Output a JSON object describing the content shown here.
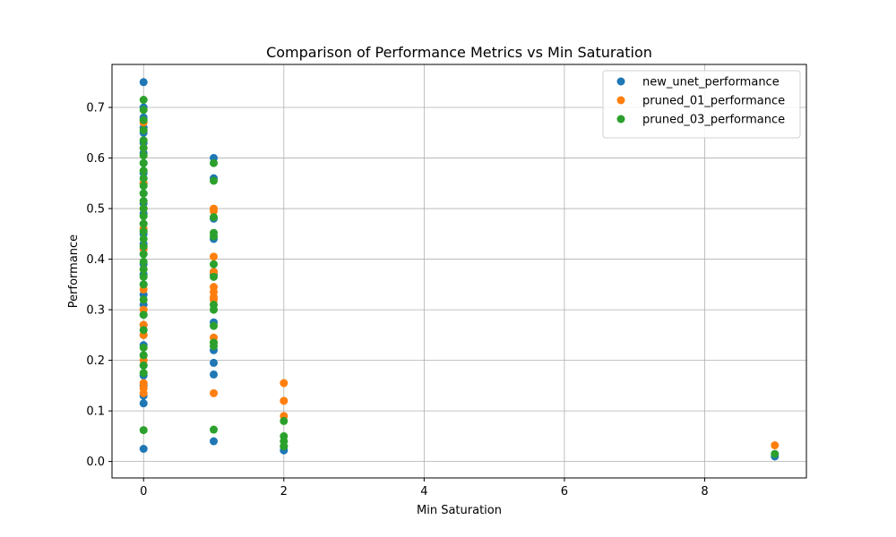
{
  "chart_data": {
    "type": "scatter",
    "title": "Comparison of Performance Metrics vs Min Saturation",
    "xlabel": "Min Saturation",
    "ylabel": "Performance",
    "xlim": [
      -0.45,
      9.45
    ],
    "ylim": [
      -0.0325,
      0.785
    ],
    "xticks": [
      0,
      2,
      4,
      6,
      8
    ],
    "yticks": [
      0.0,
      0.1,
      0.2,
      0.3,
      0.4,
      0.5,
      0.6,
      0.7
    ],
    "grid": true,
    "legend_position": "top-right",
    "series": [
      {
        "name": "new_unet_performance",
        "color": "#1f77b4",
        "points": [
          [
            0,
            0.75
          ],
          [
            0,
            0.7
          ],
          [
            0,
            0.68
          ],
          [
            0,
            0.66
          ],
          [
            0,
            0.65
          ],
          [
            0,
            0.63
          ],
          [
            0,
            0.61
          ],
          [
            0,
            0.59
          ],
          [
            0,
            0.57
          ],
          [
            0,
            0.55
          ],
          [
            0,
            0.53
          ],
          [
            0,
            0.51
          ],
          [
            0,
            0.49
          ],
          [
            0,
            0.47
          ],
          [
            0,
            0.45
          ],
          [
            0,
            0.43
          ],
          [
            0,
            0.41
          ],
          [
            0,
            0.39
          ],
          [
            0,
            0.37
          ],
          [
            0,
            0.35
          ],
          [
            0,
            0.33
          ],
          [
            0,
            0.31
          ],
          [
            0,
            0.29
          ],
          [
            0,
            0.27
          ],
          [
            0,
            0.25
          ],
          [
            0,
            0.23
          ],
          [
            0,
            0.21
          ],
          [
            0,
            0.19
          ],
          [
            0,
            0.17
          ],
          [
            0,
            0.15
          ],
          [
            0,
            0.13
          ],
          [
            0,
            0.115
          ],
          [
            0,
            0.025
          ],
          [
            1,
            0.6
          ],
          [
            1,
            0.56
          ],
          [
            1,
            0.48
          ],
          [
            1,
            0.44
          ],
          [
            1,
            0.375
          ],
          [
            1,
            0.37
          ],
          [
            1,
            0.275
          ],
          [
            1,
            0.22
          ],
          [
            1,
            0.195
          ],
          [
            1,
            0.172
          ],
          [
            1,
            0.04
          ],
          [
            2,
            0.022
          ],
          [
            2,
            0.03
          ],
          [
            9,
            0.01
          ]
        ]
      },
      {
        "name": "pruned_01_performance",
        "color": "#ff7f0e",
        "points": [
          [
            0,
            0.67
          ],
          [
            0,
            0.62
          ],
          [
            0,
            0.55
          ],
          [
            0,
            0.5
          ],
          [
            0,
            0.46
          ],
          [
            0,
            0.42
          ],
          [
            0,
            0.38
          ],
          [
            0,
            0.34
          ],
          [
            0,
            0.3
          ],
          [
            0,
            0.27
          ],
          [
            0,
            0.25
          ],
          [
            0,
            0.2
          ],
          [
            0,
            0.155
          ],
          [
            0,
            0.145
          ],
          [
            0,
            0.135
          ],
          [
            1,
            0.5
          ],
          [
            1,
            0.495
          ],
          [
            1,
            0.405
          ],
          [
            1,
            0.375
          ],
          [
            1,
            0.345
          ],
          [
            1,
            0.335
          ],
          [
            1,
            0.325
          ],
          [
            1,
            0.32
          ],
          [
            1,
            0.31
          ],
          [
            1,
            0.245
          ],
          [
            1,
            0.235
          ],
          [
            1,
            0.135
          ],
          [
            2,
            0.155
          ],
          [
            2,
            0.12
          ],
          [
            2,
            0.09
          ],
          [
            9,
            0.032
          ]
        ]
      },
      {
        "name": "pruned_03_performance",
        "color": "#2ca02c",
        "points": [
          [
            0,
            0.715
          ],
          [
            0,
            0.695
          ],
          [
            0,
            0.675
          ],
          [
            0,
            0.655
          ],
          [
            0,
            0.635
          ],
          [
            0,
            0.62
          ],
          [
            0,
            0.605
          ],
          [
            0,
            0.59
          ],
          [
            0,
            0.575
          ],
          [
            0,
            0.56
          ],
          [
            0,
            0.545
          ],
          [
            0,
            0.53
          ],
          [
            0,
            0.515
          ],
          [
            0,
            0.5
          ],
          [
            0,
            0.485
          ],
          [
            0,
            0.47
          ],
          [
            0,
            0.455
          ],
          [
            0,
            0.44
          ],
          [
            0,
            0.425
          ],
          [
            0,
            0.41
          ],
          [
            0,
            0.395
          ],
          [
            0,
            0.38
          ],
          [
            0,
            0.365
          ],
          [
            0,
            0.35
          ],
          [
            0,
            0.32
          ],
          [
            0,
            0.29
          ],
          [
            0,
            0.26
          ],
          [
            0,
            0.225
          ],
          [
            0,
            0.21
          ],
          [
            0,
            0.19
          ],
          [
            0,
            0.175
          ],
          [
            0,
            0.062
          ],
          [
            1,
            0.59
          ],
          [
            1,
            0.555
          ],
          [
            1,
            0.483
          ],
          [
            1,
            0.452
          ],
          [
            1,
            0.445
          ],
          [
            1,
            0.39
          ],
          [
            1,
            0.365
          ],
          [
            1,
            0.31
          ],
          [
            1,
            0.3
          ],
          [
            1,
            0.268
          ],
          [
            1,
            0.235
          ],
          [
            1,
            0.228
          ],
          [
            1,
            0.063
          ],
          [
            2,
            0.08
          ],
          [
            2,
            0.05
          ],
          [
            2,
            0.04
          ],
          [
            2,
            0.03
          ],
          [
            9,
            0.015
          ]
        ]
      }
    ]
  }
}
